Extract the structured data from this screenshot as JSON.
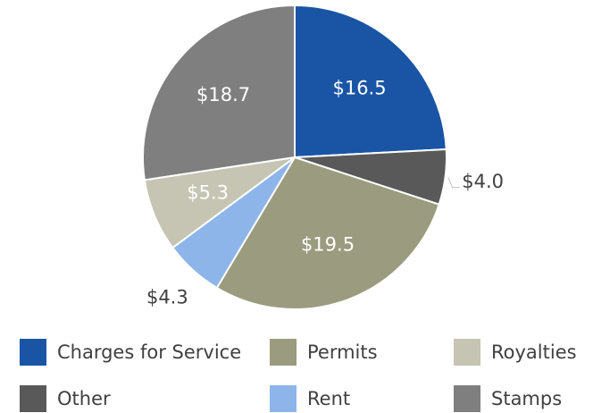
{
  "chart_data": {
    "type": "pie",
    "categories": [
      "Charges for Service",
      "Other",
      "Permits",
      "Rent",
      "Royalties",
      "Stamps"
    ],
    "values": [
      16.5,
      4.0,
      19.5,
      4.3,
      5.3,
      18.7
    ],
    "value_labels": [
      "$16.5",
      "$4.0",
      "$19.5",
      "$4.3",
      "$5.3",
      "$18.7"
    ],
    "colors": [
      "#1a55a5",
      "#595959",
      "#9b9b7f",
      "#8db5ea",
      "#c6c5b3",
      "#7f7f7f"
    ],
    "legend": "bottom"
  }
}
